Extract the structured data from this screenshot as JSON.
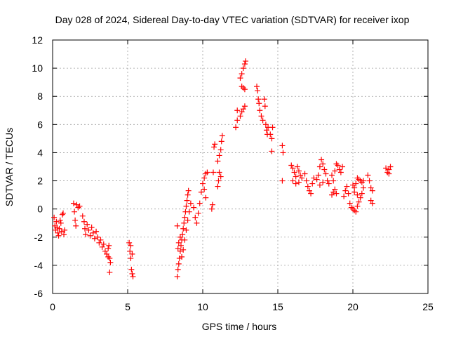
{
  "chart_data": {
    "type": "scatter",
    "title": "Day 028 of 2024, Sidereal Day-to-day VTEC variation (SDTVAR) for receiver ixop",
    "xlabel": "GPS time / hours",
    "ylabel": "SDTVAR / TECUs",
    "xlim": [
      0,
      25
    ],
    "ylim": [
      -6,
      12
    ],
    "xticks": [
      0,
      5,
      10,
      15,
      20,
      25
    ],
    "yticks": [
      -6,
      -4,
      -2,
      0,
      2,
      4,
      6,
      8,
      10,
      12
    ],
    "grid": true,
    "marker": "+",
    "color": "#ff0000",
    "series": [
      {
        "name": "SDTVAR",
        "points": [
          [
            0.1,
            -0.6
          ],
          [
            0.15,
            -1.2
          ],
          [
            0.2,
            -1.5
          ],
          [
            0.25,
            -0.9
          ],
          [
            0.3,
            -1.3
          ],
          [
            0.35,
            -1.7
          ],
          [
            0.4,
            -1.9
          ],
          [
            0.45,
            -1.4
          ],
          [
            0.5,
            -0.8
          ],
          [
            0.55,
            -1.0
          ],
          [
            0.6,
            -1.6
          ],
          [
            0.65,
            -0.4
          ],
          [
            0.7,
            -0.3
          ],
          [
            0.75,
            -1.8
          ],
          [
            0.8,
            -1.5
          ],
          [
            1.4,
            0.4
          ],
          [
            1.45,
            -0.2
          ],
          [
            1.5,
            -0.8
          ],
          [
            1.55,
            -1.2
          ],
          [
            1.6,
            0.3
          ],
          [
            1.7,
            0.1
          ],
          [
            1.8,
            0.2
          ],
          [
            2.0,
            -0.5
          ],
          [
            2.1,
            -0.9
          ],
          [
            2.15,
            -1.4
          ],
          [
            2.2,
            -1.8
          ],
          [
            2.3,
            -1.1
          ],
          [
            2.4,
            -1.5
          ],
          [
            2.5,
            -1.9
          ],
          [
            2.6,
            -1.3
          ],
          [
            2.7,
            -1.7
          ],
          [
            2.8,
            -2.1
          ],
          [
            2.9,
            -1.6
          ],
          [
            3.0,
            -2.0
          ],
          [
            3.1,
            -2.4
          ],
          [
            3.2,
            -2.2
          ],
          [
            3.3,
            -2.7
          ],
          [
            3.4,
            -2.5
          ],
          [
            3.5,
            -3.0
          ],
          [
            3.6,
            -3.2
          ],
          [
            3.7,
            -2.8
          ],
          [
            3.8,
            -3.5
          ],
          [
            3.85,
            -3.8
          ],
          [
            3.8,
            -4.5
          ],
          [
            3.7,
            -3.4
          ],
          [
            3.75,
            -2.6
          ],
          [
            5.1,
            -2.4
          ],
          [
            5.15,
            -3.0
          ],
          [
            5.2,
            -3.5
          ],
          [
            5.25,
            -4.3
          ],
          [
            5.3,
            -4.6
          ],
          [
            5.35,
            -4.8
          ],
          [
            5.2,
            -2.6
          ],
          [
            5.3,
            -3.2
          ],
          [
            8.3,
            -4.8
          ],
          [
            8.35,
            -4.3
          ],
          [
            8.4,
            -3.9
          ],
          [
            8.45,
            -3.5
          ],
          [
            8.5,
            -3.0
          ],
          [
            8.55,
            -2.6
          ],
          [
            8.6,
            -2.2
          ],
          [
            8.65,
            -1.8
          ],
          [
            8.7,
            -1.4
          ],
          [
            8.75,
            -1.0
          ],
          [
            8.8,
            -0.6
          ],
          [
            8.85,
            -0.2
          ],
          [
            8.9,
            0.2
          ],
          [
            8.95,
            0.6
          ],
          [
            9.0,
            1.0
          ],
          [
            9.05,
            1.3
          ],
          [
            8.3,
            -1.2
          ],
          [
            8.35,
            -2.8
          ],
          [
            8.4,
            -2.4
          ],
          [
            8.5,
            -2.0
          ],
          [
            8.6,
            -3.4
          ],
          [
            8.7,
            -2.9
          ],
          [
            8.8,
            -2.2
          ],
          [
            8.9,
            -1.5
          ],
          [
            9.0,
            -0.8
          ],
          [
            9.1,
            -0.2
          ],
          [
            9.2,
            0.4
          ],
          [
            9.4,
            0.1
          ],
          [
            9.5,
            -0.6
          ],
          [
            9.6,
            -1.0
          ],
          [
            9.7,
            -0.3
          ],
          [
            9.8,
            0.4
          ],
          [
            9.9,
            1.2
          ],
          [
            10.0,
            1.8
          ],
          [
            10.1,
            2.2
          ],
          [
            10.2,
            2.5
          ],
          [
            10.3,
            2.6
          ],
          [
            10.1,
            1.4
          ],
          [
            10.2,
            0.8
          ],
          [
            10.6,
            0.0
          ],
          [
            10.65,
            0.3
          ],
          [
            10.7,
            2.6
          ],
          [
            10.75,
            4.4
          ],
          [
            10.8,
            4.6
          ],
          [
            11.0,
            1.6
          ],
          [
            11.05,
            2.0
          ],
          [
            11.1,
            2.6
          ],
          [
            11.2,
            2.3
          ],
          [
            11.0,
            3.4
          ],
          [
            11.1,
            3.8
          ],
          [
            11.2,
            4.2
          ],
          [
            11.25,
            4.8
          ],
          [
            11.3,
            5.2
          ],
          [
            12.2,
            5.8
          ],
          [
            12.3,
            6.3
          ],
          [
            12.5,
            6.6
          ],
          [
            12.6,
            6.9
          ],
          [
            12.7,
            7.1
          ],
          [
            12.8,
            7.3
          ],
          [
            12.6,
            8.7
          ],
          [
            12.7,
            8.6
          ],
          [
            12.8,
            8.5
          ],
          [
            12.5,
            9.3
          ],
          [
            12.6,
            9.6
          ],
          [
            12.7,
            10.0
          ],
          [
            12.8,
            10.3
          ],
          [
            12.85,
            10.5
          ],
          [
            12.3,
            7.0
          ],
          [
            13.6,
            8.7
          ],
          [
            13.65,
            8.4
          ],
          [
            13.7,
            7.8
          ],
          [
            13.75,
            7.5
          ],
          [
            13.8,
            7.0
          ],
          [
            13.9,
            6.6
          ],
          [
            14.0,
            6.3
          ],
          [
            14.1,
            7.8
          ],
          [
            14.15,
            7.3
          ],
          [
            14.2,
            6.0
          ],
          [
            14.25,
            5.6
          ],
          [
            14.3,
            5.3
          ],
          [
            14.35,
            5.8
          ],
          [
            14.5,
            5.3
          ],
          [
            14.6,
            5.0
          ],
          [
            14.65,
            5.8
          ],
          [
            14.6,
            4.1
          ],
          [
            15.3,
            4.5
          ],
          [
            15.35,
            4.0
          ],
          [
            15.3,
            2.0
          ],
          [
            15.9,
            3.1
          ],
          [
            16.0,
            2.9
          ],
          [
            16.1,
            2.6
          ],
          [
            16.2,
            2.3
          ],
          [
            16.3,
            3.0
          ],
          [
            16.4,
            2.7
          ],
          [
            16.5,
            2.4
          ],
          [
            16.0,
            2.0
          ],
          [
            16.2,
            1.8
          ],
          [
            16.4,
            1.9
          ],
          [
            16.6,
            2.2
          ],
          [
            16.8,
            2.5
          ],
          [
            16.9,
            2.0
          ],
          [
            17.0,
            1.6
          ],
          [
            17.1,
            1.3
          ],
          [
            17.2,
            1.1
          ],
          [
            17.3,
            1.8
          ],
          [
            17.4,
            2.2
          ],
          [
            17.6,
            2.1
          ],
          [
            17.7,
            2.4
          ],
          [
            17.8,
            3.0
          ],
          [
            17.9,
            3.5
          ],
          [
            18.0,
            3.2
          ],
          [
            18.1,
            2.8
          ],
          [
            18.2,
            2.5
          ],
          [
            18.3,
            2.0
          ],
          [
            18.4,
            1.8
          ],
          [
            18.0,
            1.9
          ],
          [
            17.8,
            1.7
          ],
          [
            18.6,
            1.0
          ],
          [
            18.7,
            1.2
          ],
          [
            18.8,
            1.4
          ],
          [
            18.9,
            1.1
          ],
          [
            18.8,
            2.7
          ],
          [
            18.9,
            3.2
          ],
          [
            19.0,
            3.1
          ],
          [
            19.1,
            2.8
          ],
          [
            19.2,
            2.6
          ],
          [
            19.3,
            3.0
          ],
          [
            18.6,
            2.4
          ],
          [
            18.7,
            2.0
          ],
          [
            19.4,
            0.9
          ],
          [
            19.5,
            1.3
          ],
          [
            19.6,
            1.6
          ],
          [
            19.7,
            1.1
          ],
          [
            19.8,
            0.4
          ],
          [
            19.9,
            0.1
          ],
          [
            20.0,
            0.0
          ],
          [
            20.1,
            -0.1
          ],
          [
            20.2,
            -0.2
          ],
          [
            20.3,
            0.2
          ],
          [
            20.4,
            0.5
          ],
          [
            20.5,
            0.8
          ],
          [
            20.6,
            1.1
          ],
          [
            20.7,
            1.5
          ],
          [
            20.5,
            2.0
          ],
          [
            20.4,
            2.1
          ],
          [
            20.3,
            2.2
          ],
          [
            20.2,
            1.8
          ],
          [
            20.1,
            1.5
          ],
          [
            20.0,
            1.7
          ],
          [
            20.1,
            1.2
          ],
          [
            20.3,
            1.0
          ],
          [
            20.6,
            1.9
          ],
          [
            20.7,
            2.0
          ],
          [
            21.0,
            2.4
          ],
          [
            21.1,
            2.0
          ],
          [
            21.2,
            1.5
          ],
          [
            21.3,
            1.3
          ],
          [
            21.2,
            0.6
          ],
          [
            21.3,
            0.4
          ],
          [
            22.2,
            2.9
          ],
          [
            22.3,
            2.6
          ],
          [
            22.4,
            2.8
          ],
          [
            22.5,
            3.0
          ],
          [
            22.4,
            2.5
          ]
        ]
      }
    ]
  }
}
